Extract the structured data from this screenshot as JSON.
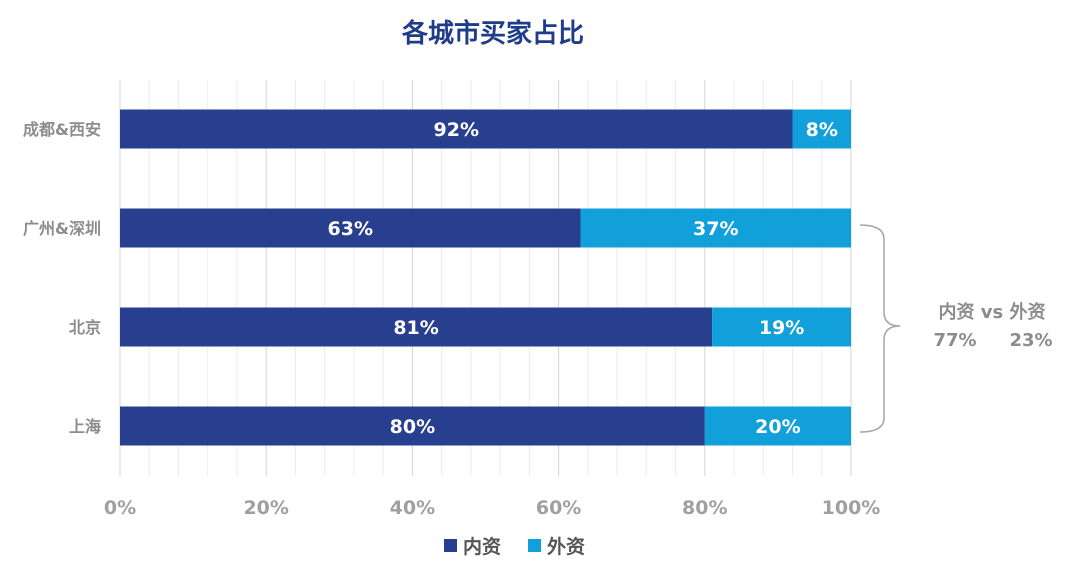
{
  "chart_data": {
    "type": "bar",
    "orientation": "horizontal",
    "stacked": true,
    "title": "各城市买家占比",
    "categories": [
      "成都&西安",
      "广州&深圳",
      "北京",
      "上海"
    ],
    "series": [
      {
        "name": "内资",
        "color": "#283f8f",
        "values": [
          92,
          63,
          81,
          80
        ],
        "labels": [
          "92%",
          "63%",
          "81%",
          "80%"
        ]
      },
      {
        "name": "外资",
        "color": "#12a0db",
        "values": [
          8,
          37,
          19,
          20
        ],
        "labels": [
          "8%",
          "37%",
          "19%",
          "20%"
        ]
      }
    ],
    "xlim": [
      0,
      100
    ],
    "xticks": [
      0,
      20,
      40,
      60,
      80,
      100
    ],
    "xtick_labels": [
      "0%",
      "20%",
      "40%",
      "60%",
      "80%",
      "100%"
    ],
    "grid": true,
    "legend": "bottom",
    "annotation": {
      "line1": "内资 vs 外资",
      "line2_left": "77%",
      "line2_right": "23%"
    }
  }
}
